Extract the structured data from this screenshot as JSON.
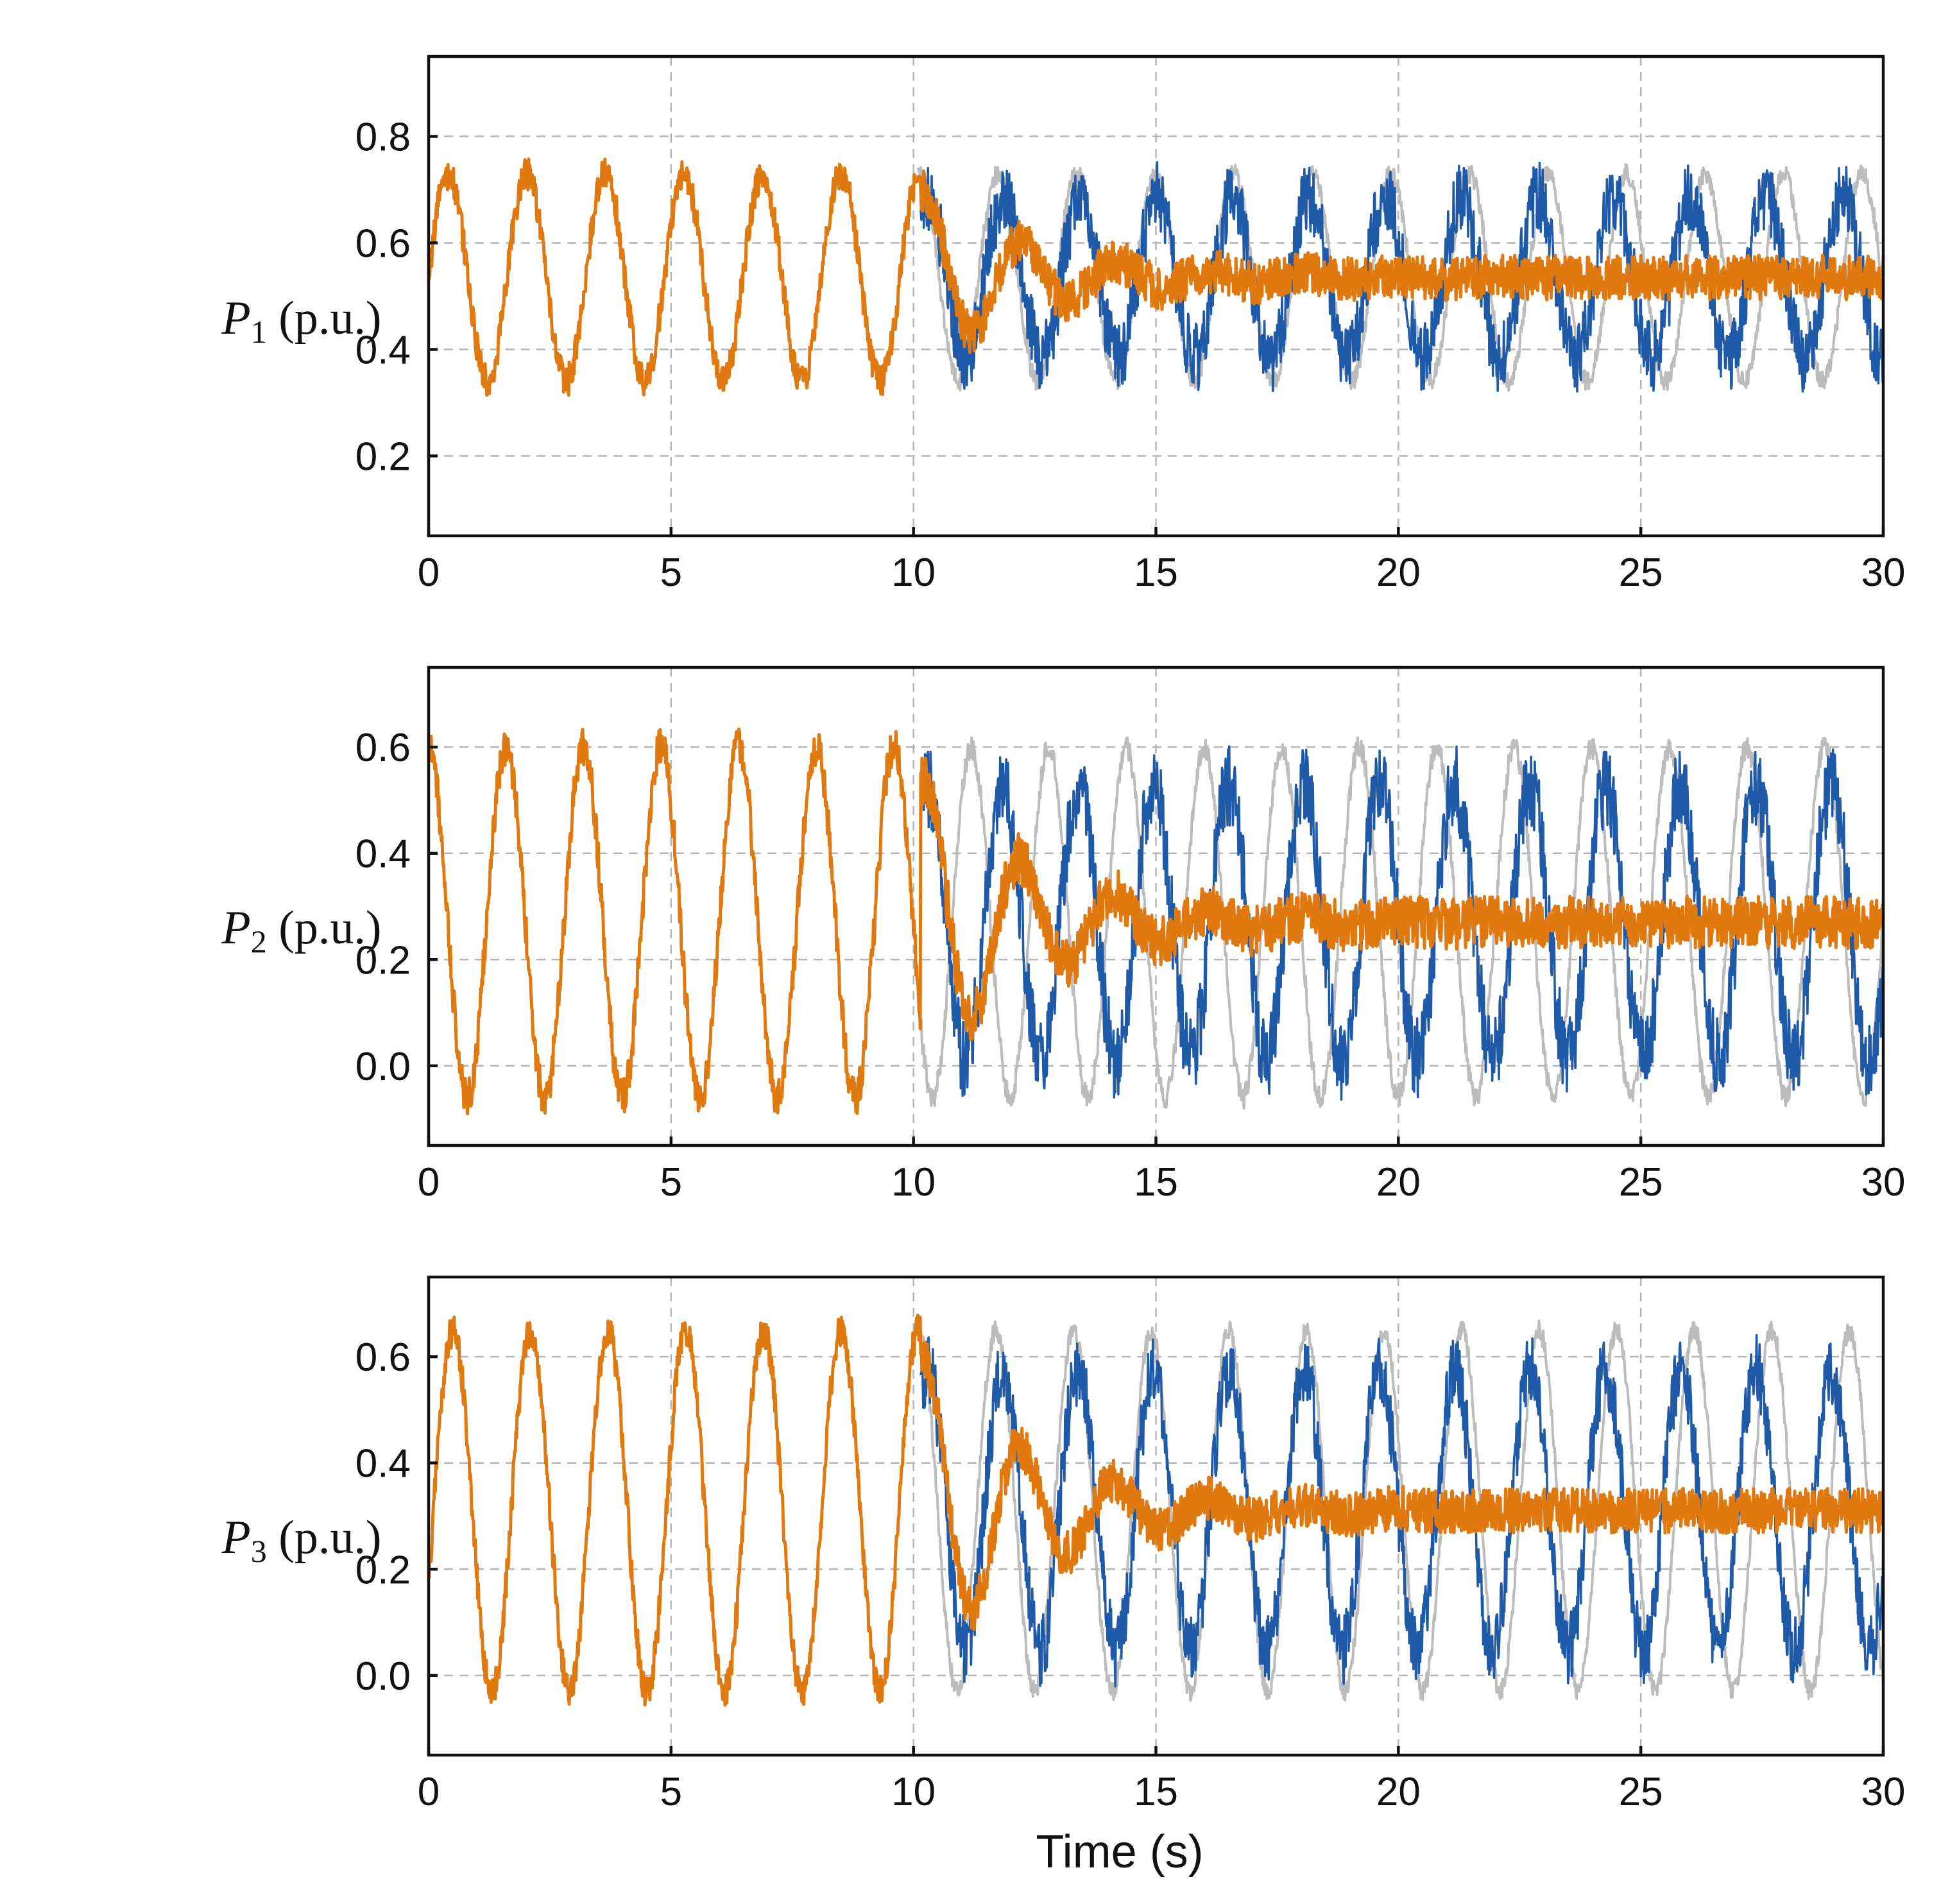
{
  "figure": {
    "xlabel": "Time (s)",
    "colors": {
      "grey_trace": "#bcbcbc",
      "blue_trace": "#1f5aa8",
      "orange_trace": "#e07a10",
      "axis": "#111111",
      "grid": "#b5b5b5"
    }
  },
  "chart_data": [
    {
      "type": "line",
      "ylabel_var": "P",
      "ylabel_sub": "1",
      "ylabel_unit": " (p.u.)",
      "xlim": [
        0,
        30
      ],
      "ylim": [
        0.05,
        0.95
      ],
      "xticks": [
        0,
        5,
        10,
        15,
        20,
        25,
        30
      ],
      "xtick_labels": [
        "0",
        "5",
        "10",
        "15",
        "20",
        "25",
        "30"
      ],
      "yticks": [
        0.2,
        0.4,
        0.6,
        0.8
      ],
      "ytick_labels": [
        "0.2",
        "0.4",
        "0.6",
        "0.8"
      ],
      "grid": true,
      "signal": {
        "mean": 0.535,
        "amplitude": 0.195,
        "period": 1.62,
        "phase": 0.0,
        "noise": 0.03,
        "damped_final": 0.535
      },
      "series": [
        {
          "name": "grey",
          "color": "#bcbcbc",
          "behavior": "undamped"
        },
        {
          "name": "blue",
          "color": "#1f5aa8",
          "behavior": "noisy-oscillation"
        },
        {
          "name": "orange",
          "color": "#e07a10",
          "behavior": "damped"
        }
      ]
    },
    {
      "type": "line",
      "ylabel_var": "P",
      "ylabel_sub": "2",
      "ylabel_unit": " (p.u.)",
      "xlim": [
        0,
        30
      ],
      "ylim": [
        -0.15,
        0.75
      ],
      "xticks": [
        0,
        5,
        10,
        15,
        20,
        25,
        30
      ],
      "xtick_labels": [
        "0",
        "5",
        "10",
        "15",
        "20",
        "25",
        "30"
      ],
      "yticks": [
        0.0,
        0.2,
        0.4,
        0.6
      ],
      "ytick_labels": [
        "0.0",
        "0.2",
        "0.4",
        "0.6"
      ],
      "grid": true,
      "signal": {
        "mean": 0.27,
        "amplitude": 0.33,
        "period": 1.6,
        "phase": 1.6,
        "noise": 0.035,
        "damped_final": 0.27
      },
      "series": [
        {
          "name": "grey",
          "color": "#bcbcbc",
          "behavior": "undamped"
        },
        {
          "name": "blue",
          "color": "#1f5aa8",
          "behavior": "noisy-oscillation"
        },
        {
          "name": "orange",
          "color": "#e07a10",
          "behavior": "damped"
        }
      ]
    },
    {
      "type": "line",
      "ylabel_var": "P",
      "ylabel_sub": "3",
      "ylabel_unit": " (p.u.)",
      "xlim": [
        0,
        30
      ],
      "ylim": [
        -0.15,
        0.75
      ],
      "xticks": [
        0,
        5,
        10,
        15,
        20,
        25,
        30
      ],
      "xtick_labels": [
        "0",
        "5",
        "10",
        "15",
        "20",
        "25",
        "30"
      ],
      "yticks": [
        0.0,
        0.2,
        0.4,
        0.6
      ],
      "ytick_labels": [
        "0.0",
        "0.2",
        "0.4",
        "0.6"
      ],
      "grid": true,
      "signal": {
        "mean": 0.31,
        "amplitude": 0.34,
        "period": 1.6,
        "phase": -0.4,
        "noise": 0.03,
        "damped_final": 0.31
      },
      "series": [
        {
          "name": "grey",
          "color": "#bcbcbc",
          "behavior": "undamped"
        },
        {
          "name": "blue",
          "color": "#1f5aa8",
          "behavior": "noisy-oscillation"
        },
        {
          "name": "orange",
          "color": "#e07a10",
          "behavior": "damped"
        }
      ]
    }
  ]
}
